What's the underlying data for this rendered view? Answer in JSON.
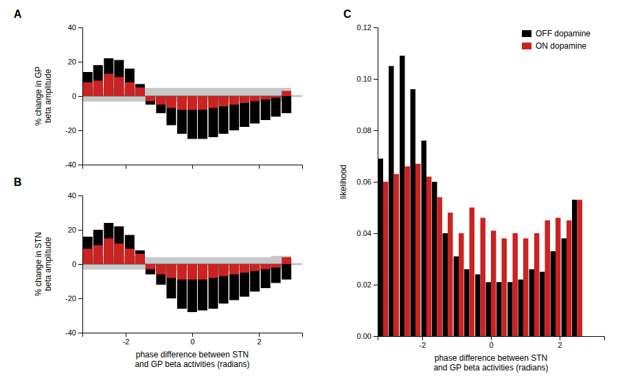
{
  "chart_data": [
    {
      "type": "bar",
      "title": "A",
      "ylabel": "% change in GP\nbeta amplitude",
      "x": [
        -3.14,
        -2.83,
        -2.51,
        -2.2,
        -1.88,
        -1.57,
        -1.26,
        -0.94,
        -0.63,
        -0.31,
        0.0,
        0.31,
        0.63,
        0.94,
        1.26,
        1.57,
        1.88,
        2.2,
        2.51,
        2.83
      ],
      "series": [
        {
          "color": "#000000",
          "values": [
            14,
            18,
            22,
            21,
            16,
            7,
            -5,
            -10,
            -17,
            -22,
            -25,
            -25,
            -24,
            -22,
            -20,
            -18,
            -16,
            -14,
            -12,
            -10
          ]
        },
        {
          "color": "#cc2222",
          "values": [
            8,
            9,
            13,
            11,
            8,
            5,
            -3,
            -5,
            -7,
            -8,
            -8,
            -8,
            -7,
            -6,
            -5,
            -4,
            -3,
            -2,
            -1,
            3
          ]
        }
      ],
      "band": {
        "color": "#c8c8c8",
        "lower": [
          -3,
          -3,
          -3,
          -3,
          -3,
          -3,
          -3,
          -3,
          -3,
          -3,
          -3,
          -3,
          -3,
          -3,
          -3,
          -3,
          -3,
          -3,
          -3,
          -3
        ],
        "upper": [
          5,
          5,
          5,
          5,
          5,
          5,
          5,
          5,
          5,
          5,
          5,
          5,
          5,
          5,
          5,
          5,
          5,
          5,
          5,
          5
        ]
      },
      "xlim": [
        -3.3,
        3.3
      ],
      "xticks": [
        -2,
        0,
        2
      ],
      "ylim": [
        -40,
        40
      ],
      "yticks": [
        -40,
        -20,
        0,
        20,
        40
      ],
      "tick_labels": "y",
      "grid": false
    },
    {
      "type": "bar",
      "title": "B",
      "ylabel": "% change in STN\nbeta amplitude",
      "xlabel": "phase difference between STN\nand GP beta activities (radians)",
      "x": [
        -3.14,
        -2.83,
        -2.51,
        -2.2,
        -1.88,
        -1.57,
        -1.26,
        -0.94,
        -0.63,
        -0.31,
        0.0,
        0.31,
        0.63,
        0.94,
        1.26,
        1.57,
        1.88,
        2.2,
        2.51,
        2.83
      ],
      "series": [
        {
          "color": "#000000",
          "values": [
            16,
            20,
            24,
            22,
            17,
            8,
            -6,
            -12,
            -20,
            -26,
            -28,
            -27,
            -26,
            -23,
            -21,
            -19,
            -16,
            -14,
            -11,
            -9
          ]
        },
        {
          "color": "#cc2222",
          "values": [
            9,
            11,
            15,
            12,
            9,
            6,
            -3,
            -6,
            -8,
            -9,
            -9,
            -9,
            -8,
            -7,
            -6,
            -5,
            -4,
            -3,
            -2,
            4
          ]
        }
      ],
      "band": {
        "color": "#c8c8c8",
        "lower": [
          -3,
          -3,
          -3,
          -3,
          -3,
          -3,
          -4,
          -4,
          -4,
          -4,
          -4,
          -4,
          -4,
          -4,
          -4,
          -4,
          -4,
          -4,
          -3,
          -3
        ],
        "upper": [
          5,
          5,
          5,
          5,
          5,
          5,
          4,
          4,
          4,
          4,
          4,
          4,
          4,
          4,
          4,
          4,
          4,
          4,
          5,
          5
        ]
      },
      "xlim": [
        -3.3,
        3.3
      ],
      "xticks": [
        -2,
        0,
        2
      ],
      "ylim": [
        -40,
        40
      ],
      "yticks": [
        -40,
        -20,
        0,
        20,
        40
      ],
      "grid": false
    },
    {
      "type": "bar",
      "title": "C",
      "ylabel": "likelihood",
      "xlabel": "phase difference between STN\nand GP beta activities (radians)",
      "x": [
        -3.14,
        -2.83,
        -2.51,
        -2.2,
        -1.88,
        -1.57,
        -1.26,
        -0.94,
        -0.63,
        -0.31,
        0.0,
        0.31,
        0.63,
        0.94,
        1.26,
        1.57,
        1.88,
        2.2,
        2.51
      ],
      "series": [
        {
          "name": "OFF dopamine",
          "color": "#000000",
          "values": [
            0.069,
            0.105,
            0.109,
            0.096,
            0.076,
            0.06,
            0.04,
            0.031,
            0.026,
            0.024,
            0.021,
            0.021,
            0.021,
            0.022,
            0.026,
            0.025,
            0.033,
            0.038,
            0.053
          ]
        },
        {
          "name": "ON dopamine",
          "color": "#cc2222",
          "values": [
            0.06,
            0.063,
            0.066,
            0.067,
            0.062,
            0.054,
            0.048,
            0.04,
            0.05,
            0.046,
            0.041,
            0.038,
            0.04,
            0.038,
            0.04,
            0.045,
            0.046,
            0.045,
            0.053
          ]
        }
      ],
      "xlim": [
        -3.3,
        3.3
      ],
      "xticks": [
        -2,
        0,
        2
      ],
      "ylim": [
        0,
        0.12
      ],
      "yticks": [
        {
          "value": 0,
          "label": "0.00"
        },
        {
          "value": 0.02,
          "label": "0.02"
        },
        {
          "value": 0.04,
          "label": "0.04"
        },
        {
          "value": 0.06,
          "label": "0.06"
        },
        {
          "value": 0.08,
          "label": "0.08"
        },
        {
          "value": 0.1,
          "label": "0.10"
        },
        {
          "value": 0.12,
          "label": "0.12"
        }
      ],
      "legend": "upper right",
      "grid": false
    }
  ]
}
